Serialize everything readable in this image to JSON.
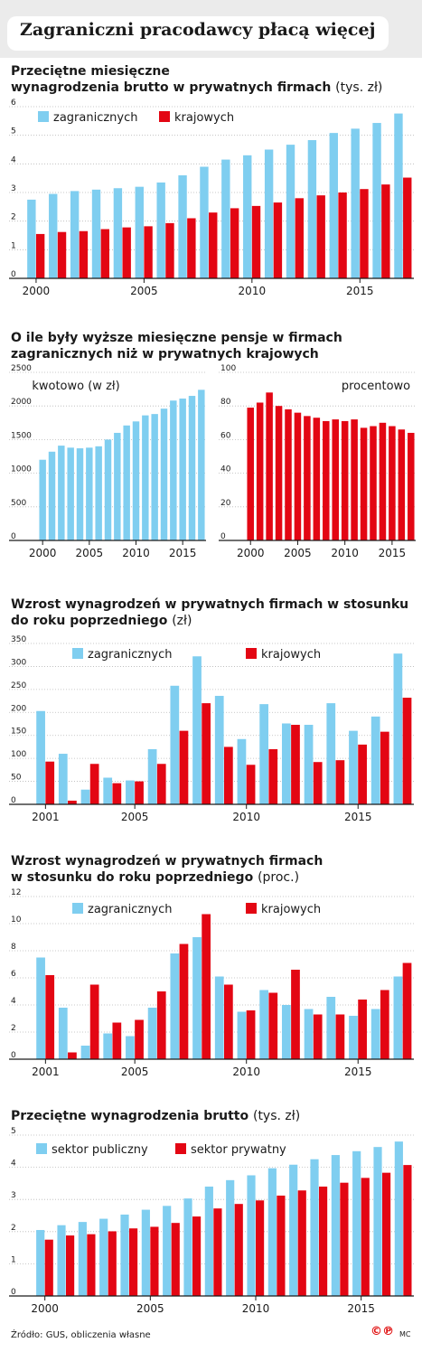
{
  "title": "Zagraniczni pracodawcy płacą więcej",
  "footer": {
    "source": "Źródło: GUS, obliczenia własne",
    "copyright": "©℗",
    "author": "MC"
  },
  "colors": {
    "blue": "#7fcef0",
    "red": "#e30613",
    "grid": "#b8b8b8",
    "header": "#ebebeb"
  },
  "chart_data": [
    {
      "type": "bar",
      "title_line1": "Przeciętne miesięczne",
      "title_line2": "wynagrodzenia brutto w prywatnych firmach",
      "unit": "(tys. zł)",
      "x": [
        2000,
        2001,
        2002,
        2003,
        2004,
        2005,
        2006,
        2007,
        2008,
        2009,
        2010,
        2011,
        2012,
        2013,
        2014,
        2015,
        2016,
        2017
      ],
      "x_tick_labels": [
        "2000",
        "2005",
        "2010",
        "2015"
      ],
      "ylim": [
        0,
        6
      ],
      "yticks": [
        0,
        1,
        2,
        3,
        4,
        5,
        6
      ],
      "grid": true,
      "legend": "top-left",
      "series": [
        {
          "name": "zagranicznych",
          "color": "#7fcef0",
          "values": [
            2.75,
            2.95,
            3.05,
            3.1,
            3.15,
            3.2,
            3.35,
            3.6,
            3.9,
            4.15,
            4.3,
            4.5,
            4.67,
            4.83,
            5.08,
            5.23,
            5.43,
            5.76
          ]
        },
        {
          "name": "krajowych",
          "color": "#e30613",
          "values": [
            1.55,
            1.62,
            1.65,
            1.72,
            1.78,
            1.82,
            1.93,
            2.1,
            2.3,
            2.45,
            2.53,
            2.65,
            2.8,
            2.9,
            3.0,
            3.12,
            3.28,
            3.52
          ]
        }
      ]
    },
    {
      "type": "bar",
      "title_line1": "O ile były wyższe miesięczne pensje w  firmach",
      "title_line2": "zagranicznych niż w prywatnych  krajowych",
      "unit": "",
      "label": "kwotowo (w zł)",
      "x": [
        2000,
        2001,
        2002,
        2003,
        2004,
        2005,
        2006,
        2007,
        2008,
        2009,
        2010,
        2011,
        2012,
        2013,
        2014,
        2015,
        2016,
        2017
      ],
      "x_tick_labels": [
        "2000",
        "2005",
        "2010",
        "2015"
      ],
      "ylim": [
        0,
        2500
      ],
      "yticks": [
        0,
        500,
        1000,
        1500,
        2000,
        2500
      ],
      "grid": true,
      "series": [
        {
          "name": "",
          "color": "#7fcef0",
          "values": [
            1200,
            1320,
            1410,
            1380,
            1370,
            1380,
            1400,
            1500,
            1600,
            1710,
            1770,
            1860,
            1880,
            1960,
            2080,
            2110,
            2150,
            2240
          ]
        }
      ]
    },
    {
      "type": "bar",
      "label": "procentowo",
      "x": [
        2000,
        2001,
        2002,
        2003,
        2004,
        2005,
        2006,
        2007,
        2008,
        2009,
        2010,
        2011,
        2012,
        2013,
        2014,
        2015,
        2016,
        2017
      ],
      "x_tick_labels": [
        "2000",
        "2005",
        "2010",
        "2015"
      ],
      "ylim": [
        0,
        100
      ],
      "yticks": [
        0,
        20,
        40,
        60,
        80,
        100
      ],
      "grid": true,
      "series": [
        {
          "name": "",
          "color": "#e30613",
          "values": [
            79,
            82,
            88,
            80,
            78,
            76,
            74,
            73,
            71,
            72,
            71,
            72,
            67,
            68,
            70,
            68,
            66,
            64
          ]
        }
      ]
    },
    {
      "type": "bar",
      "title_line1": "Wzrost wynagrodzeń w prywatnych firmach w stosunku",
      "title_line2": "do roku poprzedniego",
      "unit": "(zł)",
      "x": [
        2001,
        2002,
        2003,
        2004,
        2005,
        2006,
        2007,
        2008,
        2009,
        2010,
        2011,
        2012,
        2013,
        2014,
        2015,
        2016,
        2017
      ],
      "x_tick_labels": [
        "2001",
        "2005",
        "2010",
        "2015"
      ],
      "ylim": [
        0,
        350
      ],
      "yticks": [
        0,
        50,
        100,
        150,
        200,
        250,
        300,
        350
      ],
      "grid": true,
      "legend": "top-center",
      "series": [
        {
          "name": "zagranicznych",
          "color": "#7fcef0",
          "values": [
            203,
            110,
            32,
            58,
            52,
            120,
            258,
            322,
            236,
            142,
            218,
            176,
            173,
            220,
            160,
            191,
            328
          ]
        },
        {
          "name": "krajowych",
          "color": "#e30613",
          "values": [
            93,
            8,
            88,
            46,
            50,
            88,
            160,
            220,
            125,
            86,
            120,
            173,
            92,
            96,
            130,
            158,
            232
          ]
        }
      ]
    },
    {
      "type": "bar",
      "title_line1": "Wzrost wynagrodzeń w prywatnych firmach",
      "title_line2": "w stosunku do roku poprzedniego",
      "unit": "(proc.)",
      "x": [
        2001,
        2002,
        2003,
        2004,
        2005,
        2006,
        2007,
        2008,
        2009,
        2010,
        2011,
        2012,
        2013,
        2014,
        2015,
        2016,
        2017
      ],
      "x_tick_labels": [
        "2001",
        "2005",
        "2010",
        "2015"
      ],
      "ylim": [
        0,
        12
      ],
      "yticks": [
        0,
        2,
        4,
        6,
        8,
        10,
        12
      ],
      "grid": true,
      "legend": "top-center",
      "series": [
        {
          "name": "zagranicznych",
          "color": "#7fcef0",
          "values": [
            7.5,
            3.8,
            1.0,
            1.9,
            1.7,
            3.8,
            7.8,
            9.0,
            6.1,
            3.5,
            5.1,
            4.0,
            3.7,
            4.6,
            3.2,
            3.7,
            6.1
          ]
        },
        {
          "name": "krajowych",
          "color": "#e30613",
          "values": [
            6.2,
            0.5,
            5.5,
            2.7,
            2.9,
            5.0,
            8.5,
            10.7,
            5.5,
            3.6,
            4.9,
            6.6,
            3.3,
            3.3,
            4.4,
            5.1,
            7.1
          ]
        }
      ]
    },
    {
      "type": "bar",
      "title_line1": "Przeciętne wynagrodzenia brutto",
      "title_line2": "",
      "unit": "(tys. zł)",
      "x": [
        2000,
        2001,
        2002,
        2003,
        2004,
        2005,
        2006,
        2007,
        2008,
        2009,
        2010,
        2011,
        2012,
        2013,
        2014,
        2015,
        2016,
        2017
      ],
      "x_tick_labels": [
        "2000",
        "2005",
        "2010",
        "2015"
      ],
      "ylim": [
        0,
        5
      ],
      "yticks": [
        0,
        1,
        2,
        3,
        4,
        5
      ],
      "grid": true,
      "legend": "top-left",
      "series": [
        {
          "name": "sektor publiczny",
          "color": "#7fcef0",
          "values": [
            2.05,
            2.2,
            2.3,
            2.4,
            2.53,
            2.68,
            2.8,
            3.03,
            3.4,
            3.6,
            3.75,
            3.97,
            4.08,
            4.25,
            4.38,
            4.5,
            4.63,
            4.8
          ]
        },
        {
          "name": "sektor prywatny",
          "color": "#e30613",
          "values": [
            1.75,
            1.88,
            1.92,
            2.01,
            2.1,
            2.15,
            2.27,
            2.47,
            2.72,
            2.86,
            2.97,
            3.12,
            3.28,
            3.4,
            3.52,
            3.67,
            3.83,
            4.07
          ]
        }
      ]
    }
  ]
}
